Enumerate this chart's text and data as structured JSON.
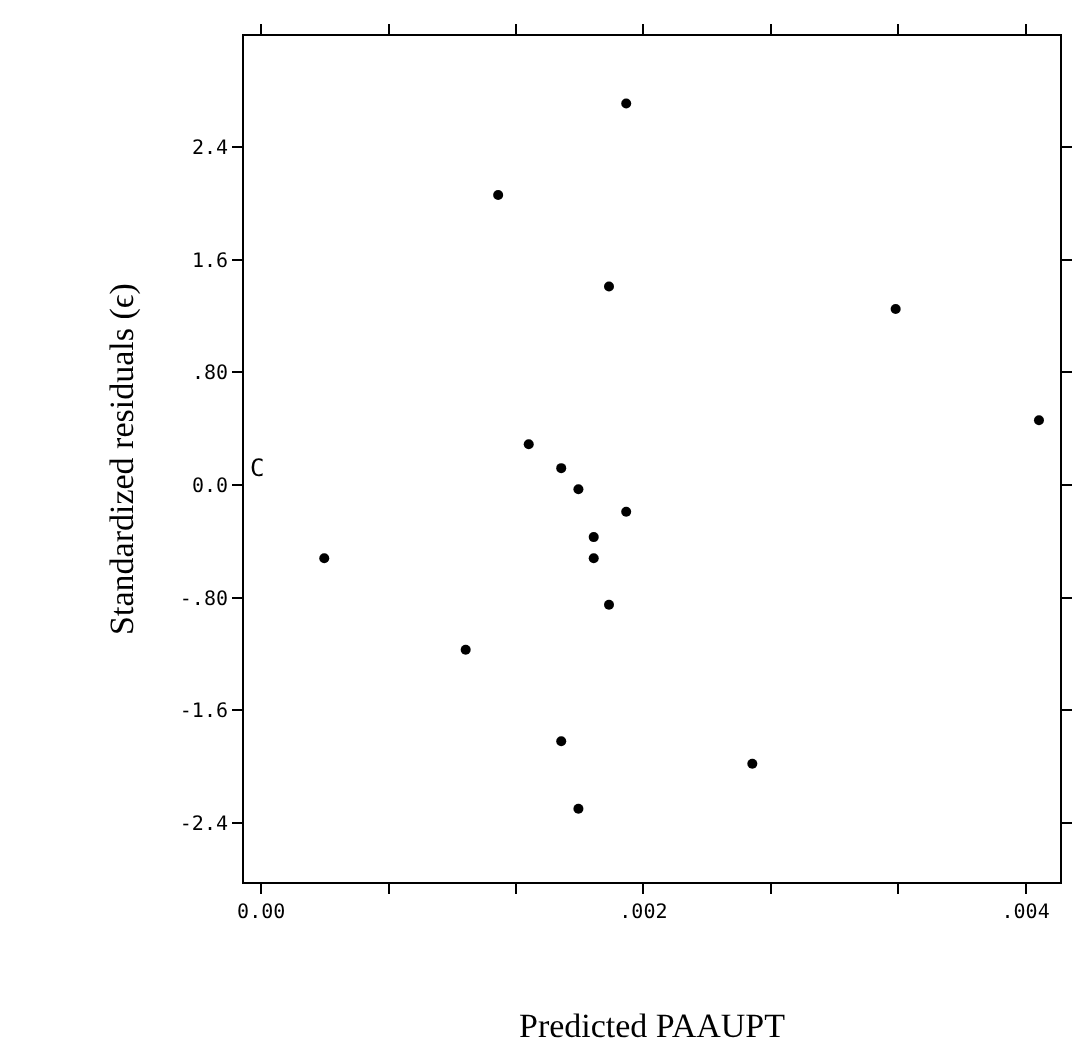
{
  "chart_data": {
    "type": "scatter",
    "xlabel": "Predicted PAAUPT",
    "ylabel": "Standardized residuals (ϵ)",
    "x": [
      0.00191,
      0.00124,
      0.00182,
      0.00332,
      0.00407,
      0.0014,
      0.00157,
      0.00166,
      0.00191,
      0.00174,
      0.00033,
      0.00174,
      0.00182,
      0.00107,
      0.00157,
      0.00257,
      0.00166
    ],
    "values": [
      2.71,
      2.06,
      1.41,
      1.25,
      0.46,
      0.29,
      0.12,
      -0.03,
      -0.19,
      -0.37,
      -0.52,
      -0.52,
      -0.85,
      -1.17,
      -1.82,
      -1.98,
      -2.3
    ],
    "color": "#000000",
    "marker": "circle",
    "annotations": [
      "C"
    ],
    "xlim": [
      -9e-05,
      0.00418
    ],
    "xticks": [
      {
        "value": 0,
        "label": "0.00"
      },
      {
        "value": 0.000667,
        "label": null
      },
      {
        "value": 0.001333,
        "label": null
      },
      {
        "value": 0.002,
        "label": ".002"
      },
      {
        "value": 0.002667,
        "label": null
      },
      {
        "value": 0.003333,
        "label": null
      },
      {
        "value": 0.004,
        "label": ".004"
      }
    ],
    "ylim": [
      -2.82,
      3.19
    ],
    "yticks": [
      {
        "value": -2.4,
        "label": "-2.4"
      },
      {
        "value": -1.6,
        "label": "-1.6"
      },
      {
        "value": -0.8,
        "label": "-.80"
      },
      {
        "value": 0,
        "label": "0.0"
      },
      {
        "value": 0.8,
        "label": ".80"
      },
      {
        "value": 1.6,
        "label": "1.6"
      },
      {
        "value": 2.4,
        "label": "2.4"
      }
    ],
    "legend": false
  }
}
